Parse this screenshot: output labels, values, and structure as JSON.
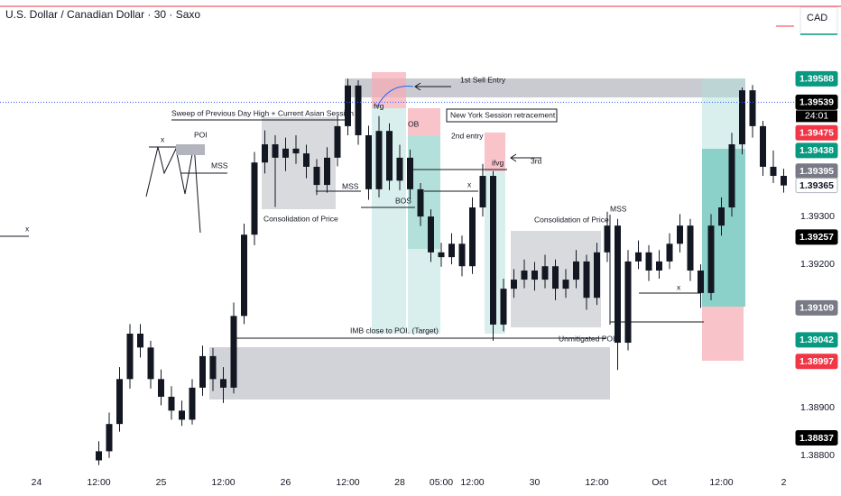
{
  "header": {
    "title": "U.S. Dollar / Canadian Dollar · 30 · Saxo",
    "currency": "CAD"
  },
  "chart_data": {
    "type": "candlestick",
    "categories": [
      null,
      null,
      null,
      "24",
      null,
      null,
      null,
      null,
      null,
      "12:00",
      null,
      null,
      null,
      null,
      null,
      "25",
      null,
      null,
      null,
      null,
      null,
      "12:00",
      null,
      null,
      null,
      null,
      null,
      "26",
      null,
      null,
      null,
      null,
      null,
      "12:00",
      null,
      null,
      null,
      null,
      "28",
      null,
      null,
      null,
      "05:00",
      null,
      null,
      "12:00",
      null,
      null,
      null,
      null,
      null,
      "30",
      null,
      null,
      null,
      null,
      null,
      "12:00",
      null,
      null,
      null,
      null,
      null,
      "Oct",
      null,
      null,
      null,
      null,
      null,
      "12:00",
      null,
      null,
      null,
      null,
      null,
      "2"
    ],
    "open": [
      null,
      null,
      null,
      null,
      null,
      null,
      null,
      null,
      null,
      1.3879,
      1.38809,
      1.38866,
      1.3896,
      1.39055,
      1.39026,
      1.3896,
      1.38923,
      1.38894,
      1.38875,
      1.38942,
      1.39008,
      1.3896,
      1.38942,
      1.39092,
      1.39262,
      1.39413,
      1.39451,
      1.39423,
      1.39442,
      1.39432,
      1.39404,
      1.39366,
      1.39423,
      1.39489,
      1.39574,
      1.3947,
      1.39357,
      1.39479,
      1.39375,
      1.39423,
      1.39357,
      1.393,
      1.39225,
      1.39215,
      1.39243,
      1.39196,
      1.39319,
      1.39385,
      1.39074,
      1.39149,
      1.39168,
      1.39187,
      1.39168,
      1.39196,
      1.39149,
      1.39168,
      1.39206,
      1.3913,
      1.39225,
      1.39281,
      1.39036,
      1.39206,
      1.39225,
      1.39187,
      1.39206,
      1.39243,
      1.39281,
      1.39187,
      1.3914,
      1.39281,
      1.39319,
      1.39451,
      1.39564,
      1.39489,
      1.39404,
      1.39385
    ],
    "high": [
      null,
      null,
      null,
      null,
      null,
      null,
      null,
      null,
      null,
      1.3883,
      1.3889,
      1.38985,
      1.39075,
      1.39075,
      1.3904,
      1.3898,
      1.38945,
      1.38915,
      1.3896,
      1.3903,
      1.39025,
      1.38985,
      1.3912,
      1.39285,
      1.39435,
      1.3948,
      1.3947,
      1.39465,
      1.3947,
      1.3945,
      1.3942,
      1.39445,
      1.3951,
      1.39588,
      1.39585,
      1.3949,
      1.3951,
      1.39495,
      1.3945,
      1.3944,
      1.3937,
      1.39315,
      1.39245,
      1.39265,
      1.3926,
      1.3934,
      1.3941,
      1.39395,
      1.3917,
      1.3919,
      1.3921,
      1.39205,
      1.3922,
      1.3921,
      1.3919,
      1.3923,
      1.3922,
      1.39245,
      1.3931,
      1.39295,
      1.3923,
      1.3925,
      1.3924,
      1.3923,
      1.39265,
      1.39305,
      1.39295,
      1.392,
      1.39305,
      1.3934,
      1.39475,
      1.3957,
      1.39575,
      1.395,
      1.39438,
      1.394
    ],
    "low": [
      null,
      null,
      null,
      null,
      null,
      null,
      null,
      null,
      null,
      1.3878,
      1.38795,
      1.3885,
      1.3894,
      1.39005,
      1.3894,
      1.38905,
      1.38875,
      1.38862,
      1.38865,
      1.38925,
      1.38935,
      1.3891,
      1.3893,
      1.39075,
      1.3924,
      1.3939,
      1.3932,
      1.39395,
      1.3941,
      1.3938,
      1.39345,
      1.3935,
      1.39405,
      1.3947,
      1.3945,
      1.39335,
      1.3934,
      1.39355,
      1.39355,
      1.39335,
      1.3928,
      1.39205,
      1.39195,
      1.392,
      1.39175,
      1.3918,
      1.393,
      1.3904,
      1.3906,
      1.3913,
      1.3915,
      1.39145,
      1.3915,
      1.39125,
      1.3913,
      1.3915,
      1.39105,
      1.39115,
      1.39205,
      1.38979,
      1.3902,
      1.3919,
      1.39165,
      1.3917,
      1.3919,
      1.39225,
      1.39165,
      1.39109,
      1.39125,
      1.3926,
      1.393,
      1.3943,
      1.39465,
      1.39385,
      1.3937,
      1.3935
    ],
    "close": [
      null,
      null,
      null,
      null,
      null,
      null,
      null,
      null,
      null,
      1.38809,
      1.38866,
      1.3896,
      1.39055,
      1.39026,
      1.3896,
      1.38923,
      1.38894,
      1.38875,
      1.38942,
      1.39008,
      1.3896,
      1.38942,
      1.39092,
      1.39262,
      1.39413,
      1.39451,
      1.39423,
      1.39442,
      1.39432,
      1.39404,
      1.39366,
      1.39423,
      1.39489,
      1.39574,
      1.3947,
      1.39357,
      1.39479,
      1.39375,
      1.39423,
      1.39357,
      1.393,
      1.39225,
      1.39215,
      1.39243,
      1.39196,
      1.39319,
      1.39385,
      1.39074,
      1.39149,
      1.39168,
      1.39187,
      1.39168,
      1.39196,
      1.39149,
      1.39168,
      1.39206,
      1.3913,
      1.39225,
      1.39281,
      1.39036,
      1.39206,
      1.39225,
      1.39187,
      1.39206,
      1.39243,
      1.39281,
      1.39187,
      1.3914,
      1.39281,
      1.39319,
      1.39451,
      1.39564,
      1.39489,
      1.39404,
      1.39385,
      1.39365
    ],
    "color": "#131722",
    "ylim": [
      1.38772,
      1.39734
    ],
    "yticks": [
      {
        "value": 1.393,
        "label": "1.39300"
      },
      {
        "value": 1.392,
        "label": "1.39200"
      },
      {
        "value": 1.389,
        "label": "1.38900"
      },
      {
        "value": 1.388,
        "label": "1.38800"
      }
    ],
    "price_labels": [
      {
        "value": 1.39588,
        "color": "#089981",
        "text_color": "#ffffff"
      },
      {
        "value": 1.39539,
        "color": "#000000",
        "text_color": "#ffffff",
        "countdown": "24:01"
      },
      {
        "value": 1.39475,
        "color": "#f23645",
        "text_color": "#ffffff"
      },
      {
        "value": 1.39438,
        "color": "#089981",
        "text_color": "#ffffff"
      },
      {
        "value": 1.39395,
        "color": "#787b86",
        "text_color": "#ffffff"
      },
      {
        "value": 1.39365,
        "color": "#ffffff",
        "text_color": "#131722"
      },
      {
        "value": 1.39257,
        "color": "#000000",
        "text_color": "#ffffff"
      },
      {
        "value": 1.39109,
        "color": "#787b86",
        "text_color": "#ffffff"
      },
      {
        "value": 1.39042,
        "color": "#089981",
        "text_color": "#ffffff"
      },
      {
        "value": 1.38997,
        "color": "#f23645",
        "text_color": "#ffffff"
      },
      {
        "value": 1.38837,
        "color": "#000000",
        "text_color": "#ffffff"
      }
    ],
    "annotations": [
      "Sweep of Previous Day High + Current Asian Session",
      "1st Sell Entry",
      "New York Session retracement",
      "2nd entry",
      "3rd",
      "fvg",
      "OB",
      "ifvg",
      "MSS",
      "BOS",
      "MSS",
      "MSS",
      "x",
      "x",
      "x",
      "x",
      "POI",
      "Consolidation of Price",
      "Consolidation of Price",
      "IMB close to POI. (Target)",
      "Unmitigated POI"
    ]
  }
}
